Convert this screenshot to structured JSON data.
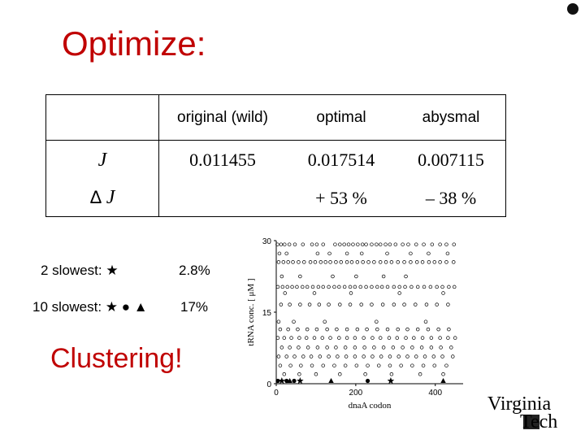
{
  "slide": {
    "title": "Optimize:",
    "table": {
      "headers": [
        "",
        "original (wild)",
        "optimal",
        "abysmal"
      ],
      "row_j": {
        "symbol": "J",
        "values": [
          "0.011455",
          "0.017514",
          "0.007115"
        ]
      },
      "row_delta_j": {
        "delta": "Δ",
        "symbol": "J",
        "values": [
          "",
          "+ 53 %",
          "– 38 %"
        ]
      }
    },
    "slowest_2": {
      "label": "2 slowest:",
      "markers": "★",
      "value": "2.8%"
    },
    "slowest_10": {
      "label": "10 slowest:",
      "markers": "★ ● ▲",
      "value": "17%"
    },
    "clustering": "Clustering!",
    "logo": {
      "line1": "Virginia",
      "line2": "Tech"
    }
  },
  "chart_data": {
    "type": "scatter",
    "xlabel": "dnaA codon",
    "ylabel": "tRNA conc. [ μM ]",
    "xlim": [
      0,
      470
    ],
    "ylim": [
      0,
      30
    ],
    "xticks": [
      "0",
      "200",
      "400"
    ],
    "yticks": [
      "0",
      "15",
      "30"
    ],
    "series": [
      {
        "marker": "circle",
        "points": [
          [
            3,
            29.2
          ],
          [
            12,
            29.2
          ],
          [
            21,
            29.2
          ],
          [
            33,
            29.2
          ],
          [
            47,
            29.2
          ],
          [
            67,
            29.2
          ],
          [
            90,
            29.2
          ],
          [
            102,
            29.2
          ],
          [
            118,
            29.2
          ],
          [
            148,
            29.2
          ],
          [
            160,
            29.2
          ],
          [
            171,
            29.2
          ],
          [
            182,
            29.2
          ],
          [
            193,
            29.2
          ],
          [
            205,
            29.2
          ],
          [
            217,
            29.2
          ],
          [
            226,
            29.2
          ],
          [
            240,
            29.2
          ],
          [
            252,
            29.2
          ],
          [
            262,
            29.2
          ],
          [
            275,
            29.2
          ],
          [
            286,
            29.2
          ],
          [
            300,
            29.2
          ],
          [
            318,
            29.2
          ],
          [
            332,
            29.2
          ],
          [
            352,
            29.2
          ],
          [
            371,
            29.2
          ],
          [
            392,
            29.2
          ],
          [
            412,
            29.2
          ],
          [
            428,
            29.2
          ],
          [
            447,
            29.2
          ],
          [
            8,
            27.3
          ],
          [
            26,
            27.3
          ],
          [
            104,
            27.3
          ],
          [
            134,
            27.3
          ],
          [
            178,
            27.3
          ],
          [
            215,
            27.3
          ],
          [
            279,
            27.3
          ],
          [
            338,
            27.3
          ],
          [
            383,
            27.3
          ],
          [
            431,
            27.3
          ],
          [
            6,
            25.5
          ],
          [
            18,
            25.5
          ],
          [
            30,
            25.5
          ],
          [
            42,
            25.5
          ],
          [
            56,
            25.5
          ],
          [
            70,
            25.5
          ],
          [
            86,
            25.5
          ],
          [
            98,
            25.5
          ],
          [
            112,
            25.5
          ],
          [
            124,
            25.5
          ],
          [
            136,
            25.5
          ],
          [
            150,
            25.5
          ],
          [
            163,
            25.5
          ],
          [
            178,
            25.5
          ],
          [
            190,
            25.5
          ],
          [
            204,
            25.5
          ],
          [
            218,
            25.5
          ],
          [
            232,
            25.5
          ],
          [
            246,
            25.5
          ],
          [
            262,
            25.5
          ],
          [
            276,
            25.5
          ],
          [
            290,
            25.5
          ],
          [
            306,
            25.5
          ],
          [
            322,
            25.5
          ],
          [
            338,
            25.5
          ],
          [
            354,
            25.5
          ],
          [
            368,
            25.5
          ],
          [
            384,
            25.5
          ],
          [
            398,
            25.5
          ],
          [
            412,
            25.5
          ],
          [
            428,
            25.5
          ],
          [
            446,
            25.5
          ],
          [
            14,
            22.5
          ],
          [
            60,
            22.5
          ],
          [
            142,
            22.5
          ],
          [
            201,
            22.5
          ],
          [
            270,
            22.5
          ],
          [
            326,
            22.5
          ],
          [
            4,
            20.3
          ],
          [
            16,
            20.3
          ],
          [
            28,
            20.3
          ],
          [
            40,
            20.3
          ],
          [
            52,
            20.3
          ],
          [
            66,
            20.3
          ],
          [
            78,
            20.3
          ],
          [
            92,
            20.3
          ],
          [
            106,
            20.3
          ],
          [
            118,
            20.3
          ],
          [
            132,
            20.3
          ],
          [
            146,
            20.3
          ],
          [
            158,
            20.3
          ],
          [
            172,
            20.3
          ],
          [
            186,
            20.3
          ],
          [
            198,
            20.3
          ],
          [
            212,
            20.3
          ],
          [
            226,
            20.3
          ],
          [
            240,
            20.3
          ],
          [
            254,
            20.3
          ],
          [
            266,
            20.3
          ],
          [
            280,
            20.3
          ],
          [
            296,
            20.3
          ],
          [
            310,
            20.3
          ],
          [
            324,
            20.3
          ],
          [
            340,
            20.3
          ],
          [
            356,
            20.3
          ],
          [
            372,
            20.3
          ],
          [
            388,
            20.3
          ],
          [
            404,
            20.3
          ],
          [
            418,
            20.3
          ],
          [
            434,
            20.3
          ],
          [
            448,
            20.3
          ],
          [
            22,
            19.0
          ],
          [
            96,
            19.0
          ],
          [
            188,
            19.0
          ],
          [
            310,
            19.0
          ],
          [
            420,
            19.0
          ],
          [
            12,
            16.6
          ],
          [
            34,
            16.6
          ],
          [
            60,
            16.6
          ],
          [
            84,
            16.6
          ],
          [
            108,
            16.6
          ],
          [
            132,
            16.6
          ],
          [
            160,
            16.6
          ],
          [
            186,
            16.6
          ],
          [
            214,
            16.6
          ],
          [
            240,
            16.6
          ],
          [
            268,
            16.6
          ],
          [
            296,
            16.6
          ],
          [
            322,
            16.6
          ],
          [
            350,
            16.6
          ],
          [
            378,
            16.6
          ],
          [
            404,
            16.6
          ],
          [
            432,
            16.6
          ],
          [
            6,
            13.0
          ],
          [
            44,
            13.0
          ],
          [
            122,
            13.0
          ],
          [
            252,
            13.0
          ],
          [
            376,
            13.0
          ],
          [
            10,
            11.4
          ],
          [
            30,
            11.4
          ],
          [
            54,
            11.4
          ],
          [
            78,
            11.4
          ],
          [
            102,
            11.4
          ],
          [
            128,
            11.4
          ],
          [
            152,
            11.4
          ],
          [
            178,
            11.4
          ],
          [
            204,
            11.4
          ],
          [
            228,
            11.4
          ],
          [
            254,
            11.4
          ],
          [
            280,
            11.4
          ],
          [
            306,
            11.4
          ],
          [
            330,
            11.4
          ],
          [
            356,
            11.4
          ],
          [
            382,
            11.4
          ],
          [
            408,
            11.4
          ],
          [
            434,
            11.4
          ],
          [
            4,
            9.6
          ],
          [
            20,
            9.6
          ],
          [
            38,
            9.6
          ],
          [
            58,
            9.6
          ],
          [
            76,
            9.6
          ],
          [
            96,
            9.6
          ],
          [
            116,
            9.6
          ],
          [
            136,
            9.6
          ],
          [
            158,
            9.6
          ],
          [
            178,
            9.6
          ],
          [
            198,
            9.6
          ],
          [
            220,
            9.6
          ],
          [
            242,
            9.6
          ],
          [
            262,
            9.6
          ],
          [
            284,
            9.6
          ],
          [
            304,
            9.6
          ],
          [
            326,
            9.6
          ],
          [
            346,
            9.6
          ],
          [
            368,
            9.6
          ],
          [
            390,
            9.6
          ],
          [
            412,
            9.6
          ],
          [
            432,
            9.6
          ],
          [
            450,
            9.6
          ],
          [
            14,
            7.6
          ],
          [
            34,
            7.6
          ],
          [
            56,
            7.6
          ],
          [
            80,
            7.6
          ],
          [
            104,
            7.6
          ],
          [
            128,
            7.6
          ],
          [
            150,
            7.6
          ],
          [
            174,
            7.6
          ],
          [
            198,
            7.6
          ],
          [
            222,
            7.6
          ],
          [
            246,
            7.6
          ],
          [
            270,
            7.6
          ],
          [
            294,
            7.6
          ],
          [
            318,
            7.6
          ],
          [
            342,
            7.6
          ],
          [
            366,
            7.6
          ],
          [
            390,
            7.6
          ],
          [
            414,
            7.6
          ],
          [
            440,
            7.6
          ],
          [
            6,
            5.7
          ],
          [
            26,
            5.7
          ],
          [
            46,
            5.7
          ],
          [
            68,
            5.7
          ],
          [
            88,
            5.7
          ],
          [
            110,
            5.7
          ],
          [
            132,
            5.7
          ],
          [
            154,
            5.7
          ],
          [
            176,
            5.7
          ],
          [
            198,
            5.7
          ],
          [
            220,
            5.7
          ],
          [
            242,
            5.7
          ],
          [
            264,
            5.7
          ],
          [
            286,
            5.7
          ],
          [
            308,
            5.7
          ],
          [
            330,
            5.7
          ],
          [
            352,
            5.7
          ],
          [
            374,
            5.7
          ],
          [
            396,
            5.7
          ],
          [
            418,
            5.7
          ],
          [
            444,
            5.7
          ],
          [
            10,
            3.8
          ],
          [
            36,
            3.8
          ],
          [
            62,
            3.8
          ],
          [
            90,
            3.8
          ],
          [
            118,
            3.8
          ],
          [
            146,
            3.8
          ],
          [
            174,
            3.8
          ],
          [
            202,
            3.8
          ],
          [
            230,
            3.8
          ],
          [
            258,
            3.8
          ],
          [
            286,
            3.8
          ],
          [
            314,
            3.8
          ],
          [
            342,
            3.8
          ],
          [
            370,
            3.8
          ],
          [
            398,
            3.8
          ],
          [
            428,
            3.8
          ],
          [
            20,
            2.0
          ],
          [
            58,
            2.0
          ],
          [
            100,
            2.0
          ],
          [
            160,
            2.0
          ],
          [
            224,
            2.0
          ],
          [
            290,
            2.0
          ],
          [
            362,
            2.0
          ],
          [
            420,
            2.0
          ]
        ]
      },
      {
        "marker": "star",
        "points": [
          [
            14,
            0.6
          ],
          [
            60,
            0.6
          ],
          [
            288,
            0.6
          ]
        ]
      },
      {
        "marker": "dot",
        "points": [
          [
            4,
            0.6
          ],
          [
            26,
            0.6
          ],
          [
            45,
            0.6
          ],
          [
            230,
            0.6
          ]
        ]
      },
      {
        "marker": "triangle",
        "points": [
          [
            34,
            0.6
          ],
          [
            138,
            0.6
          ],
          [
            420,
            0.6
          ]
        ]
      }
    ]
  }
}
